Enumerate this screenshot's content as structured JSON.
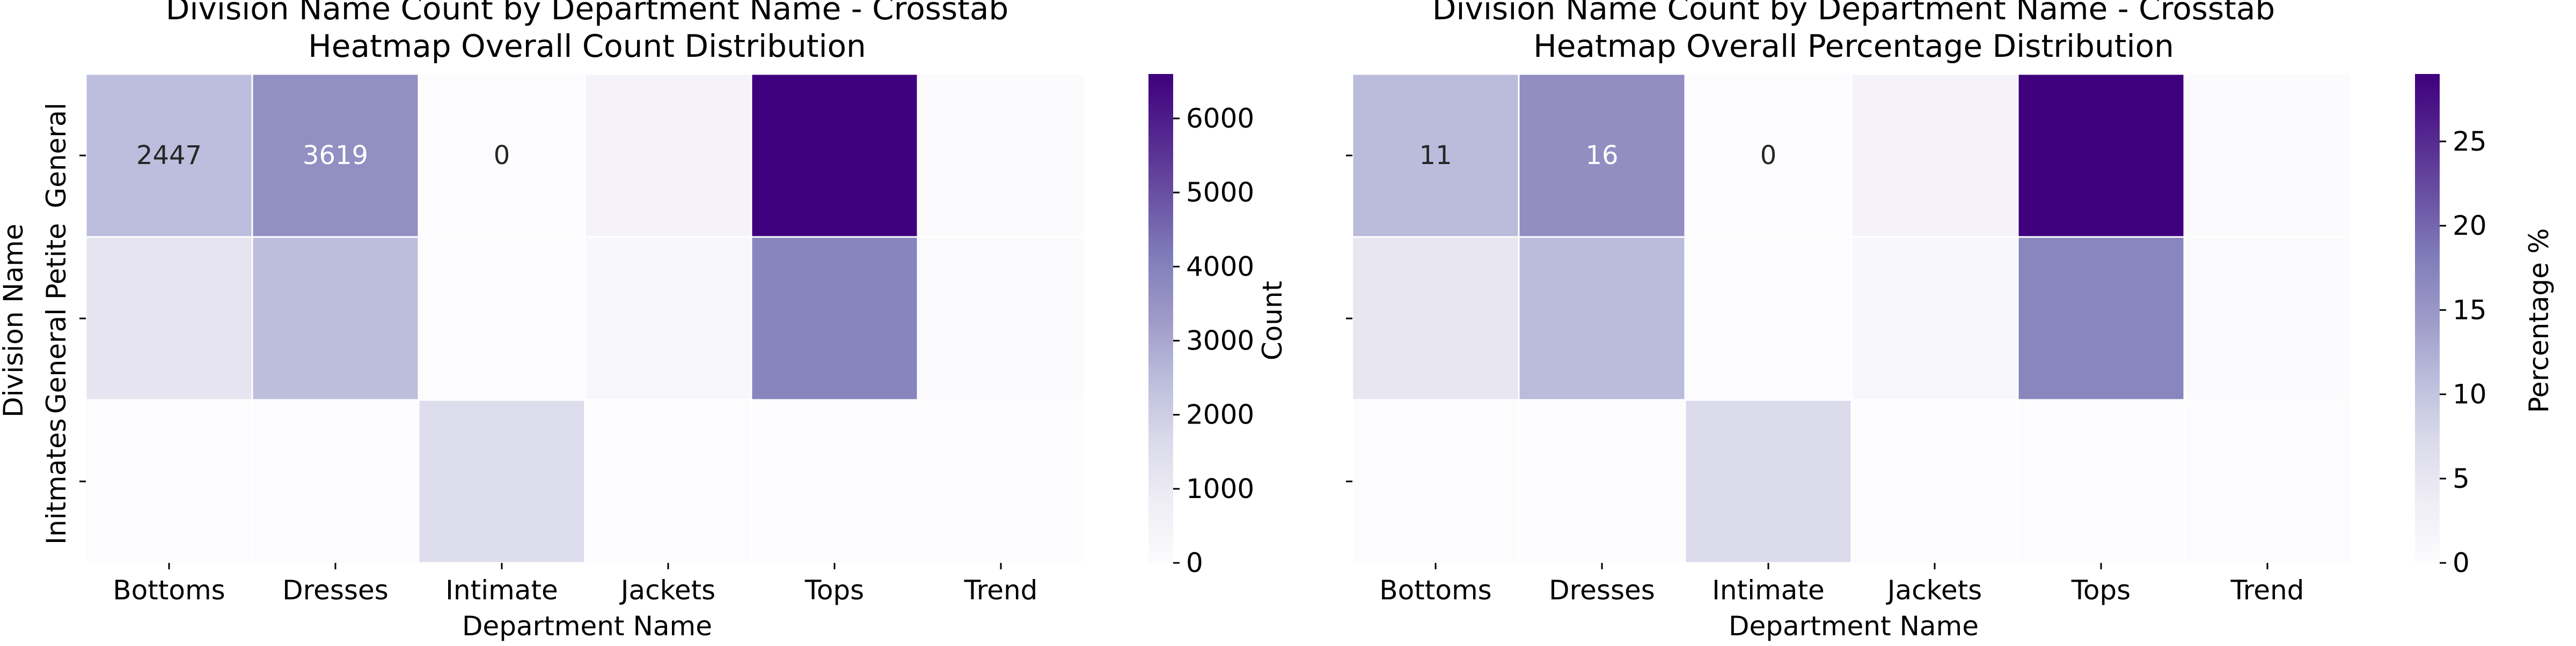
{
  "colorscale": [
    "#fcfbfd",
    "#efedf5",
    "#dadaeb",
    "#bcbddc",
    "#9e9ac8",
    "#807dba",
    "#6a51a3",
    "#54278f",
    "#3f007d"
  ],
  "cell_border_color": "#ffffff",
  "chart_data": [
    {
      "type": "heatmap",
      "title": "Division Name Count by Department Name - Crosstab",
      "subtitle": "Heatmap Overall Count Distribution",
      "xlabel": "Department Name",
      "ylabel": "Division Name",
      "x_categories": [
        "Bottoms",
        "Dresses",
        "Intimate",
        "Jackets",
        "Tops",
        "Trend"
      ],
      "y_categories": [
        "General",
        "General Petite",
        "Initmates"
      ],
      "values": [
        [
          2447,
          3619,
          0,
          450,
          6600,
          60
        ],
        [
          1200,
          2450,
          0,
          250,
          3900,
          40
        ],
        [
          0,
          0,
          1500,
          0,
          0,
          0
        ]
      ],
      "annotations": [
        [
          "2447",
          "3619",
          "0",
          "",
          "",
          ""
        ],
        [
          "",
          "",
          "",
          "",
          "",
          ""
        ],
        [
          "",
          "",
          "",
          "",
          "",
          ""
        ]
      ],
      "colorbar": {
        "label": "Count",
        "min": 0,
        "max": 6600,
        "ticks": [
          0,
          1000,
          2000,
          3000,
          4000,
          5000,
          6000
        ]
      }
    },
    {
      "type": "heatmap",
      "title": "Division Name Count by Department Name - Crosstab",
      "subtitle": "Heatmap Overall Percentage Distribution",
      "xlabel": "Department Name",
      "ylabel": "",
      "x_categories": [
        "Bottoms",
        "Dresses",
        "Intimate",
        "Jackets",
        "Tops",
        "Trend"
      ],
      "y_categories": [
        "General",
        "General Petite",
        "Initmates"
      ],
      "values": [
        [
          11,
          16,
          0,
          2,
          29,
          0.3
        ],
        [
          5,
          11,
          0,
          1,
          17,
          0.2
        ],
        [
          0,
          0,
          7,
          0,
          0,
          0
        ]
      ],
      "annotations": [
        [
          "11",
          "16",
          "0",
          "",
          "",
          ""
        ],
        [
          "",
          "",
          "",
          "",
          "",
          ""
        ],
        [
          "",
          "",
          "",
          "",
          "",
          ""
        ]
      ],
      "colorbar": {
        "label": "Percentage %",
        "min": 0,
        "max": 29,
        "ticks": [
          0,
          5,
          10,
          15,
          20,
          25
        ]
      }
    }
  ]
}
